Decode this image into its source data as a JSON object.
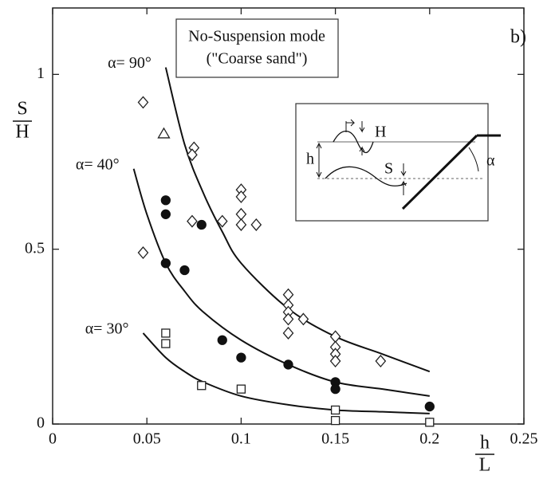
{
  "chart_data": {
    "type": "scatter",
    "title": [
      "No-Suspension mode",
      "(\"Coarse sand\")"
    ],
    "panel_label": "b)",
    "ylabel": [
      "S",
      "H"
    ],
    "xlabel": [
      "h",
      "L"
    ],
    "xlim": [
      0,
      0.25
    ],
    "ylim": [
      0,
      1.19
    ],
    "xticks": [
      0,
      0.05,
      0.1,
      0.15,
      0.2,
      0.25
    ],
    "yticks": [
      0,
      0.5,
      1
    ],
    "series": [
      {
        "marker": "diamond",
        "fill": "#ffffff",
        "color": "#222222",
        "x": [
          0.048,
          0.048,
          0.075,
          0.074,
          0.074,
          0.09,
          0.1,
          0.1,
          0.1,
          0.1,
          0.108,
          0.125,
          0.125,
          0.125,
          0.125,
          0.125,
          0.133,
          0.15,
          0.15,
          0.15,
          0.15,
          0.174
        ],
        "values": [
          0.92,
          0.49,
          0.79,
          0.77,
          0.58,
          0.58,
          0.67,
          0.65,
          0.6,
          0.57,
          0.57,
          0.37,
          0.34,
          0.32,
          0.3,
          0.26,
          0.3,
          0.25,
          0.22,
          0.2,
          0.18,
          0.18
        ]
      },
      {
        "marker": "triangle",
        "fill": "#ffffff",
        "color": "#222222",
        "x": [
          0.059
        ],
        "values": [
          0.83
        ]
      },
      {
        "marker": "circle",
        "fill": "#111111",
        "color": "#111111",
        "x": [
          0.06,
          0.06,
          0.06,
          0.07,
          0.079,
          0.09,
          0.1,
          0.125,
          0.15,
          0.15,
          0.2
        ],
        "values": [
          0.64,
          0.6,
          0.46,
          0.44,
          0.57,
          0.24,
          0.19,
          0.17,
          0.12,
          0.1,
          0.05
        ]
      },
      {
        "marker": "square",
        "fill": "#ffffff",
        "color": "#222222",
        "x": [
          0.06,
          0.06,
          0.079,
          0.1,
          0.15,
          0.15,
          0.2
        ],
        "values": [
          0.26,
          0.23,
          0.11,
          0.1,
          0.04,
          0.01,
          0.005
        ]
      }
    ],
    "curves": [
      {
        "label": "α= 90°",
        "color": "#111111",
        "x": [
          0.06,
          0.07,
          0.08,
          0.09,
          0.1,
          0.125,
          0.15,
          0.175,
          0.2
        ],
        "values": [
          1.02,
          0.8,
          0.66,
          0.55,
          0.46,
          0.33,
          0.25,
          0.2,
          0.15
        ]
      },
      {
        "label": "α= 40°",
        "color": "#111111",
        "x": [
          0.043,
          0.05,
          0.06,
          0.07,
          0.08,
          0.1,
          0.125,
          0.15,
          0.175,
          0.2
        ],
        "values": [
          0.73,
          0.6,
          0.46,
          0.38,
          0.32,
          0.24,
          0.17,
          0.12,
          0.1,
          0.08
        ]
      },
      {
        "label": "α= 30°",
        "color": "#111111",
        "x": [
          0.048,
          0.06,
          0.07,
          0.08,
          0.1,
          0.125,
          0.15,
          0.175,
          0.2
        ],
        "values": [
          0.26,
          0.19,
          0.15,
          0.12,
          0.08,
          0.055,
          0.04,
          0.035,
          0.03
        ]
      }
    ],
    "inset": {
      "labels": [
        "H",
        "h",
        "S",
        "α"
      ]
    }
  }
}
